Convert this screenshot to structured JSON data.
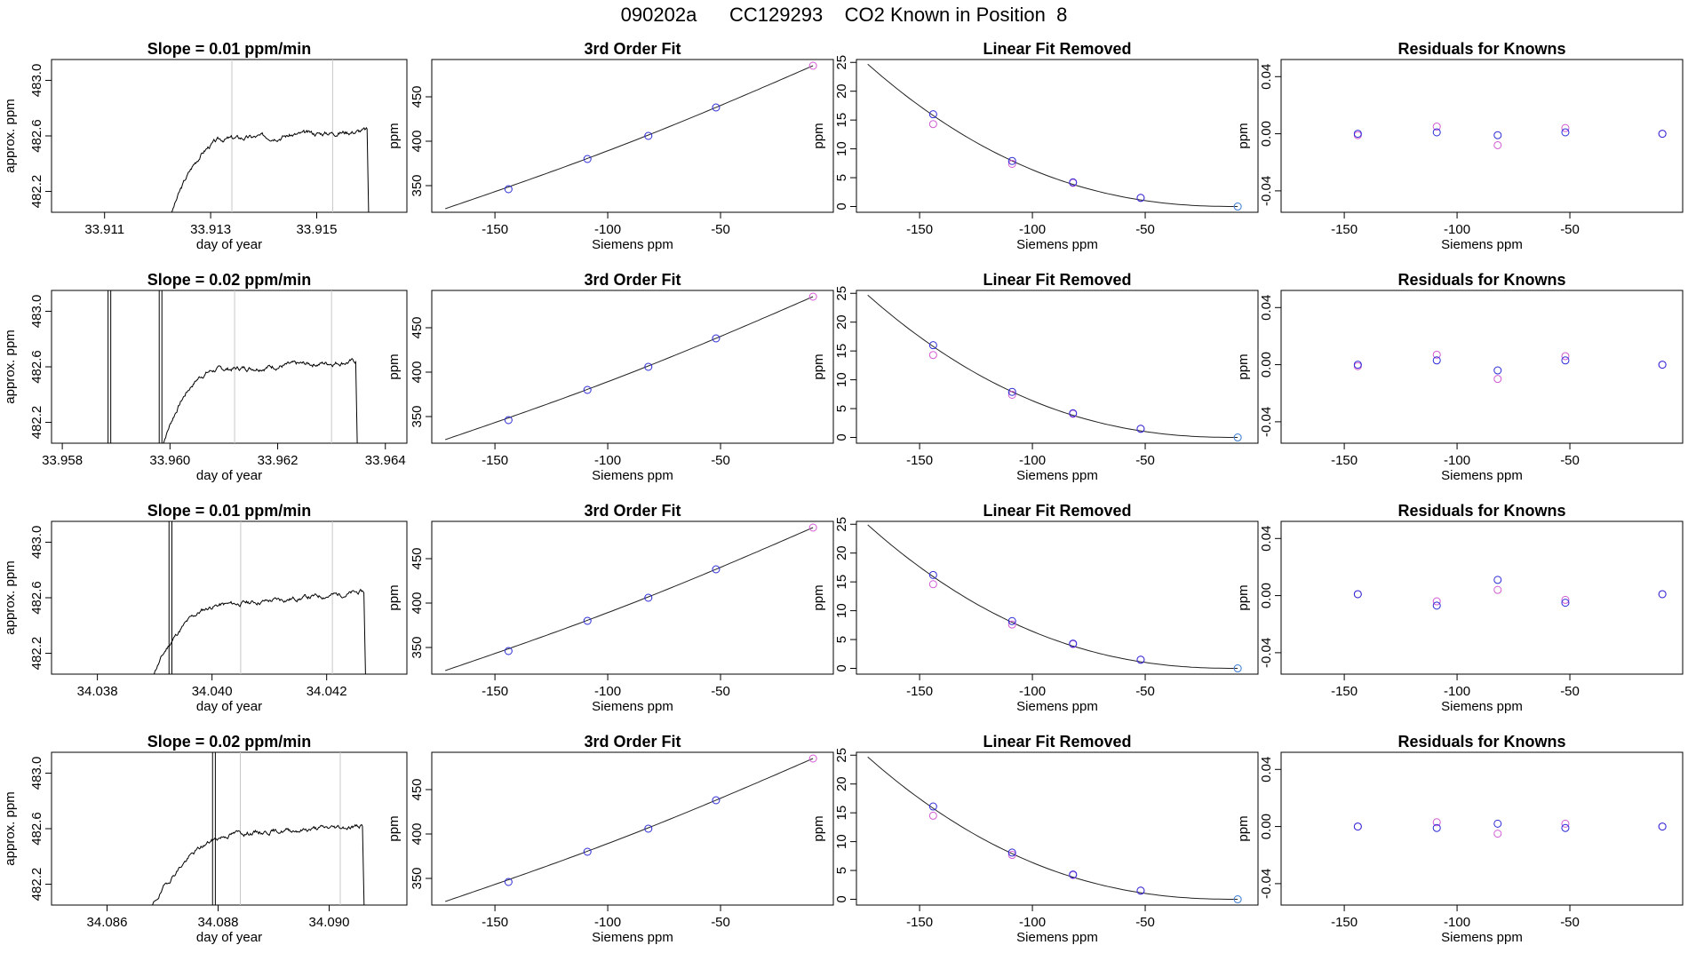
{
  "page_title": "090202a      CC129293    CO2 Known in Position  8",
  "colors": {
    "axis": "#000000",
    "trace": "#000000",
    "guide": "#c8c8c8",
    "fit_line": "#222222",
    "meas_blue": "#2a2ad6",
    "meas_magenta": "#d25ad2",
    "zero_point": "#3a8fd6"
  },
  "chart_data": [
    {
      "type": "line",
      "title": "Slope =  0.01  ppm/min",
      "xlabel": "day of year",
      "ylabel": "approx. ppm",
      "xlim": [
        33.91,
        33.9167
      ],
      "ylim": [
        482.05,
        483.15
      ],
      "xticks": [
        33.911,
        33.913,
        33.915
      ],
      "xtick_labels": [
        "33.911",
        "33.913",
        "33.915"
      ],
      "yticks": [
        482.2,
        482.6,
        483.0
      ],
      "ytick_labels": [
        "482.2",
        "482.6",
        "483.0"
      ],
      "guides": [
        33.9134,
        33.9153
      ],
      "segments": [
        {
          "start": 33.91225,
          "end": 33.91595,
          "rise": 0.3,
          "base": 482.03,
          "level": 482.58,
          "drift": 0.06,
          "noise": 0.015,
          "seed": 3
        }
      ]
    },
    {
      "type": "scatter+line",
      "title": "3rd Order Fit",
      "xlabel": "Siemens ppm",
      "ylabel": "ppm",
      "xlim": [
        -178,
        0
      ],
      "ylim": [
        320,
        492
      ],
      "xticks": [
        -150,
        -100,
        -50
      ],
      "xtick_labels": [
        "-150",
        "-100",
        "-50"
      ],
      "yticks": [
        350,
        400,
        450
      ],
      "ytick_labels": [
        "350",
        "400",
        "450"
      ],
      "x": [
        -144,
        -109,
        -82,
        -52,
        -9
      ],
      "y": [
        346,
        380,
        406,
        438,
        485
      ],
      "fit": {
        "x0": -172,
        "x1": -9,
        "y0": 324,
        "y1": 485,
        "curve": 6
      }
    },
    {
      "type": "scatter+line",
      "title": "Linear Fit Removed",
      "xlabel": "Siemens ppm",
      "ylabel": "ppm",
      "xlim": [
        -178,
        0
      ],
      "ylim": [
        -1,
        25.5
      ],
      "xticks": [
        -150,
        -100,
        -50
      ],
      "xtick_labels": [
        "-150",
        "-100",
        "-50"
      ],
      "yticks": [
        0,
        5,
        10,
        15,
        20,
        25
      ],
      "ytick_labels": [
        "0",
        "5",
        "10",
        "15",
        "20",
        "25"
      ],
      "x": [
        -144,
        -109,
        -82,
        -52,
        -9
      ],
      "y_blue": [
        16.0,
        7.9,
        4.2,
        1.5,
        0
      ],
      "y_magenta": [
        14.3,
        7.4,
        4.1,
        1.5,
        0
      ],
      "fit": {
        "x0": -173,
        "x1": -9,
        "a": 24.7
      }
    },
    {
      "type": "scatter",
      "title": "Residuals for Knowns",
      "xlabel": "Siemens ppm",
      "ylabel": "ppm",
      "xlim": [
        -178,
        0
      ],
      "ylim": [
        -0.055,
        0.052
      ],
      "xticks": [
        -150,
        -100,
        -50
      ],
      "xtick_labels": [
        "-150",
        "-100",
        "-50"
      ],
      "yticks": [
        -0.04,
        0.0,
        0.04
      ],
      "ytick_labels": [
        "-0.04",
        "0.00",
        "0.04"
      ],
      "x": [
        -144,
        -109,
        -82,
        -52,
        -9
      ],
      "y_blue": [
        0.0,
        0.001,
        -0.001,
        0.001,
        0.0
      ],
      "y_magenta": [
        -0.001,
        0.005,
        -0.008,
        0.004,
        0.0
      ]
    },
    {
      "type": "line",
      "title": "Slope =  0.02  ppm/min",
      "xlabel": "day of year",
      "ylabel": "approx. ppm",
      "xlim": [
        33.9578,
        33.9644
      ],
      "ylim": [
        482.05,
        483.15
      ],
      "xticks": [
        33.958,
        33.96,
        33.962,
        33.964
      ],
      "xtick_labels": [
        "33.958",
        "33.960",
        "33.962",
        "33.964"
      ],
      "yticks": [
        482.2,
        482.6,
        483.0
      ],
      "ytick_labels": [
        "482.2",
        "482.6",
        "483.0"
      ],
      "guides": [
        33.9612,
        33.963
      ],
      "segments": [
        {
          "start": 33.95985,
          "end": 33.96345,
          "rise": 0.3,
          "base": 482.03,
          "level": 482.58,
          "drift": 0.06,
          "noise": 0.015,
          "seed": 7
        }
      ],
      "spikes": [
        33.95885,
        33.9589,
        33.9598,
        33.95985
      ]
    },
    {
      "type": "scatter+line",
      "title": "3rd Order Fit",
      "xlabel": "Siemens ppm",
      "ylabel": "ppm",
      "xlim": [
        -178,
        0
      ],
      "ylim": [
        320,
        492
      ],
      "xticks": [
        -150,
        -100,
        -50
      ],
      "xtick_labels": [
        "-150",
        "-100",
        "-50"
      ],
      "yticks": [
        350,
        400,
        450
      ],
      "ytick_labels": [
        "350",
        "400",
        "450"
      ],
      "x": [
        -144,
        -109,
        -82,
        -52,
        -9
      ],
      "y": [
        346,
        380,
        406,
        438,
        485
      ],
      "fit": {
        "x0": -172,
        "x1": -9,
        "y0": 324,
        "y1": 485,
        "curve": 6
      }
    },
    {
      "type": "scatter+line",
      "title": "Linear Fit Removed",
      "xlabel": "Siemens ppm",
      "ylabel": "ppm",
      "xlim": [
        -178,
        0
      ],
      "ylim": [
        -1,
        25.5
      ],
      "xticks": [
        -150,
        -100,
        -50
      ],
      "xtick_labels": [
        "-150",
        "-100",
        "-50"
      ],
      "yticks": [
        0,
        5,
        10,
        15,
        20,
        25
      ],
      "ytick_labels": [
        "0",
        "5",
        "10",
        "15",
        "20",
        "25"
      ],
      "x": [
        -144,
        -109,
        -82,
        -52,
        -9
      ],
      "y_blue": [
        16.0,
        7.9,
        4.2,
        1.5,
        0
      ],
      "y_magenta": [
        14.3,
        7.4,
        4.1,
        1.5,
        0
      ],
      "fit": {
        "x0": -173,
        "x1": -9,
        "a": 24.7
      }
    },
    {
      "type": "scatter",
      "title": "Residuals for Knowns",
      "xlabel": "Siemens ppm",
      "ylabel": "ppm",
      "xlim": [
        -178,
        0
      ],
      "ylim": [
        -0.055,
        0.052
      ],
      "xticks": [
        -150,
        -100,
        -50
      ],
      "xtick_labels": [
        "-150",
        "-100",
        "-50"
      ],
      "yticks": [
        -0.04,
        0.0,
        0.04
      ],
      "ytick_labels": [
        "-0.04",
        "0.00",
        "0.04"
      ],
      "x": [
        -144,
        -109,
        -82,
        -52,
        -9
      ],
      "y_blue": [
        0.0,
        0.003,
        -0.004,
        0.003,
        0.0
      ],
      "y_magenta": [
        -0.001,
        0.007,
        -0.01,
        0.006,
        0.0
      ]
    },
    {
      "type": "line",
      "title": "Slope =  0.01  ppm/min",
      "xlabel": "day of year",
      "ylabel": "approx. ppm",
      "xlim": [
        34.0372,
        34.0434
      ],
      "ylim": [
        482.05,
        483.15
      ],
      "xticks": [
        34.038,
        34.04,
        34.042
      ],
      "xtick_labels": [
        "34.038",
        "34.040",
        "34.042"
      ],
      "yticks": [
        482.2,
        482.6,
        483.0
      ],
      "ytick_labels": [
        "482.2",
        "482.6",
        "483.0"
      ],
      "guides": [
        34.0405,
        34.0421
      ],
      "segments": [
        {
          "start": 34.03895,
          "end": 34.04265,
          "rise": 0.35,
          "base": 482.03,
          "level": 482.55,
          "drift": 0.09,
          "noise": 0.015,
          "seed": 11
        }
      ],
      "spikes": [
        34.03925,
        34.0393
      ]
    },
    {
      "type": "scatter+line",
      "title": "3rd Order Fit",
      "xlabel": "Siemens ppm",
      "ylabel": "ppm",
      "xlim": [
        -178,
        0
      ],
      "ylim": [
        320,
        492
      ],
      "xticks": [
        -150,
        -100,
        -50
      ],
      "xtick_labels": [
        "-150",
        "-100",
        "-50"
      ],
      "yticks": [
        350,
        400,
        450
      ],
      "ytick_labels": [
        "350",
        "400",
        "450"
      ],
      "x": [
        -144,
        -109,
        -82,
        -52,
        -9
      ],
      "y": [
        346,
        380,
        406,
        438,
        485
      ],
      "fit": {
        "x0": -172,
        "x1": -9,
        "y0": 324,
        "y1": 485,
        "curve": 6
      }
    },
    {
      "type": "scatter+line",
      "title": "Linear Fit Removed",
      "xlabel": "Siemens ppm",
      "ylabel": "ppm",
      "xlim": [
        -178,
        0
      ],
      "ylim": [
        -1,
        25.5
      ],
      "xticks": [
        -150,
        -100,
        -50
      ],
      "xtick_labels": [
        "-150",
        "-100",
        "-50"
      ],
      "yticks": [
        0,
        5,
        10,
        15,
        20,
        25
      ],
      "ytick_labels": [
        "0",
        "5",
        "10",
        "15",
        "20",
        "25"
      ],
      "x": [
        -144,
        -109,
        -82,
        -52,
        -9
      ],
      "y_blue": [
        16.2,
        8.2,
        4.3,
        1.5,
        0
      ],
      "y_magenta": [
        14.6,
        7.6,
        4.2,
        1.5,
        0
      ],
      "fit": {
        "x0": -173,
        "x1": -9,
        "a": 24.9
      }
    },
    {
      "type": "scatter",
      "title": "Residuals for Knowns",
      "xlabel": "Siemens ppm",
      "ylabel": "ppm",
      "xlim": [
        -178,
        0
      ],
      "ylim": [
        -0.055,
        0.052
      ],
      "xticks": [
        -150,
        -100,
        -50
      ],
      "xtick_labels": [
        "-150",
        "-100",
        "-50"
      ],
      "yticks": [
        -0.04,
        0.0,
        0.04
      ],
      "ytick_labels": [
        "-0.04",
        "0.00",
        "0.04"
      ],
      "x": [
        -144,
        -109,
        -82,
        -52,
        -9
      ],
      "y_blue": [
        0.001,
        -0.007,
        0.011,
        -0.005,
        0.001
      ],
      "y_magenta": [
        0.001,
        -0.004,
        0.004,
        -0.003,
        0.001
      ]
    },
    {
      "type": "line",
      "title": "Slope =  0.02  ppm/min",
      "xlabel": "day of year",
      "ylabel": "approx. ppm",
      "xlim": [
        34.085,
        34.0914
      ],
      "ylim": [
        482.05,
        483.15
      ],
      "xticks": [
        34.086,
        34.088,
        34.09
      ],
      "xtick_labels": [
        "34.086",
        "34.088",
        "34.090"
      ],
      "yticks": [
        482.2,
        482.6,
        483.0
      ],
      "ytick_labels": [
        "482.2",
        "482.6",
        "483.0"
      ],
      "guides": [
        34.0884,
        34.0902
      ],
      "segments": [
        {
          "start": 34.0868,
          "end": 34.0906,
          "rise": 0.45,
          "base": 482.03,
          "level": 482.57,
          "drift": 0.05,
          "noise": 0.015,
          "seed": 19
        }
      ],
      "spikes": [
        34.0879,
        34.08795
      ]
    },
    {
      "type": "scatter+line",
      "title": "3rd Order Fit",
      "xlabel": "Siemens ppm",
      "ylabel": "ppm",
      "xlim": [
        -178,
        0
      ],
      "ylim": [
        320,
        492
      ],
      "xticks": [
        -150,
        -100,
        -50
      ],
      "xtick_labels": [
        "-150",
        "-100",
        "-50"
      ],
      "yticks": [
        350,
        400,
        450
      ],
      "ytick_labels": [
        "350",
        "400",
        "450"
      ],
      "x": [
        -144,
        -109,
        -82,
        -52,
        -9
      ],
      "y": [
        346,
        380,
        406,
        438,
        485
      ],
      "fit": {
        "x0": -172,
        "x1": -9,
        "y0": 324,
        "y1": 485,
        "curve": 6
      }
    },
    {
      "type": "scatter+line",
      "title": "Linear Fit Removed",
      "xlabel": "Siemens ppm",
      "ylabel": "ppm",
      "xlim": [
        -178,
        0
      ],
      "ylim": [
        -1,
        25.5
      ],
      "xticks": [
        -150,
        -100,
        -50
      ],
      "xtick_labels": [
        "-150",
        "-100",
        "-50"
      ],
      "yticks": [
        0,
        5,
        10,
        15,
        20,
        25
      ],
      "ytick_labels": [
        "0",
        "5",
        "10",
        "15",
        "20",
        "25"
      ],
      "x": [
        -144,
        -109,
        -82,
        -52,
        -9
      ],
      "y_blue": [
        16.1,
        8.1,
        4.3,
        1.5,
        0
      ],
      "y_magenta": [
        14.5,
        7.7,
        4.2,
        1.5,
        0
      ],
      "fit": {
        "x0": -173,
        "x1": -9,
        "a": 24.7
      }
    },
    {
      "type": "scatter",
      "title": "Residuals for Knowns",
      "xlabel": "Siemens ppm",
      "ylabel": "ppm",
      "xlim": [
        -178,
        0
      ],
      "ylim": [
        -0.055,
        0.052
      ],
      "xticks": [
        -150,
        -100,
        -50
      ],
      "xtick_labels": [
        "-150",
        "-100",
        "-50"
      ],
      "yticks": [
        -0.04,
        0.0,
        0.04
      ],
      "ytick_labels": [
        "-0.04",
        "0.00",
        "0.04"
      ],
      "x": [
        -144,
        -109,
        -82,
        -52,
        -9
      ],
      "y_blue": [
        0.0,
        -0.001,
        0.002,
        -0.001,
        0.0
      ],
      "y_magenta": [
        0.0,
        0.003,
        -0.005,
        0.002,
        0.0
      ]
    }
  ]
}
